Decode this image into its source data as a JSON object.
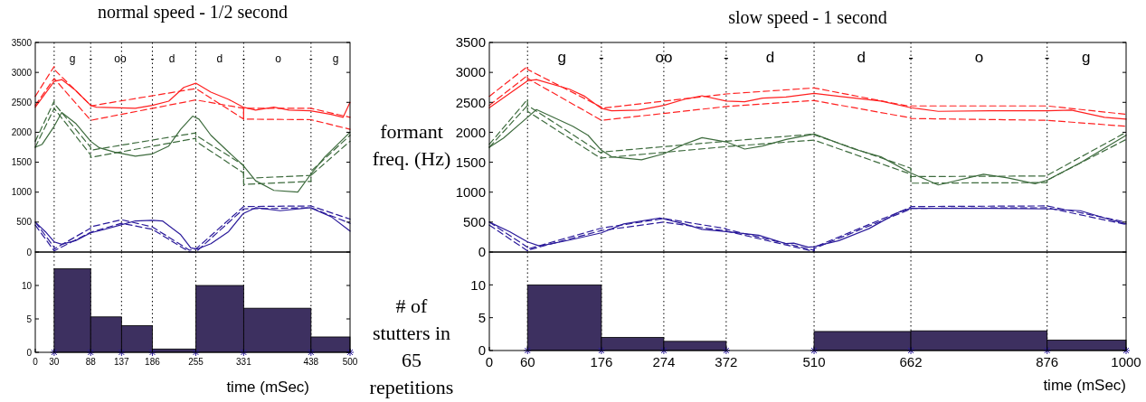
{
  "chart_data": [
    {
      "type": "line",
      "title": "normal speed - 1/2 second",
      "xlim": [
        0,
        500
      ],
      "ylim": [
        0,
        3500
      ],
      "yticks": [
        0,
        500,
        1000,
        1500,
        2000,
        2500,
        3000,
        3500
      ],
      "tick_labels": "y",
      "ref_lines": [
        {
          "axis": "x",
          "value": 30,
          "line_style": "dotted"
        },
        {
          "axis": "x",
          "value": 88,
          "line_style": "dotted"
        },
        {
          "axis": "x",
          "value": 137,
          "line_style": "dotted"
        },
        {
          "axis": "x",
          "value": 186,
          "line_style": "dotted"
        },
        {
          "axis": "x",
          "value": 255,
          "line_style": "dotted"
        },
        {
          "axis": "x",
          "value": 331,
          "line_style": "dotted"
        },
        {
          "axis": "x",
          "value": 438,
          "line_style": "dotted"
        }
      ],
      "annotations": [
        "g",
        "-",
        "oo",
        "-",
        "d",
        "d",
        "-",
        "o",
        "-",
        "g"
      ],
      "series": [
        {
          "color": "#ff2020",
          "line_style": "solid",
          "x": [
            0,
            30,
            42,
            64,
            88,
            97,
            159,
            186,
            212,
            236,
            255,
            279,
            307,
            330,
            350,
            379,
            403,
            437,
            470,
            489,
            500
          ],
          "values": [
            2420,
            2850,
            2880,
            2700,
            2450,
            2420,
            2400,
            2450,
            2520,
            2750,
            2820,
            2670,
            2550,
            2420,
            2370,
            2420,
            2370,
            2360,
            2300,
            2250,
            2500
          ]
        },
        {
          "color": "#ff2020",
          "line_style": "dashed",
          "x": [
            0,
            30,
            30,
            88,
            88,
            255,
            255,
            331,
            331,
            438,
            438,
            500
          ],
          "values": [
            2600,
            3100,
            3050,
            2450,
            2440,
            2730,
            2730,
            2220,
            2400,
            2400,
            2400,
            2250
          ]
        },
        {
          "color": "#ff2020",
          "line_style": "dashed",
          "x": [
            0,
            30,
            30,
            88,
            88,
            255,
            255,
            331,
            331,
            438,
            438,
            500
          ],
          "values": [
            2450,
            2900,
            2900,
            2200,
            2200,
            2540,
            2540,
            2400,
            2220,
            2210,
            2210,
            2050
          ]
        },
        {
          "color": "#3d6b3d",
          "line_style": "solid",
          "x": [
            0,
            11,
            30,
            42,
            64,
            88,
            102,
            126,
            159,
            186,
            212,
            231,
            250,
            260,
            279,
            307,
            330,
            350,
            379,
            417,
            437,
            460,
            500
          ],
          "values": [
            1750,
            1800,
            2100,
            2330,
            2150,
            1850,
            1740,
            1670,
            1600,
            1640,
            1770,
            2050,
            2270,
            2220,
            1950,
            1670,
            1450,
            1190,
            1030,
            1000,
            1290,
            1590,
            2000
          ]
        },
        {
          "color": "#3d6b3d",
          "line_style": "dashed",
          "x": [
            0,
            30,
            30,
            88,
            88,
            255,
            255,
            331,
            331,
            438,
            438,
            500
          ],
          "values": [
            1850,
            2520,
            2480,
            1750,
            1700,
            1990,
            1950,
            1450,
            1230,
            1280,
            1350,
            1950
          ]
        },
        {
          "color": "#3d6b3d",
          "line_style": "dashed",
          "x": [
            0,
            30,
            30,
            88,
            88,
            255,
            255,
            331,
            331,
            438,
            438,
            500
          ],
          "values": [
            1750,
            2400,
            2400,
            1620,
            1580,
            1900,
            1850,
            1320,
            1130,
            1180,
            1280,
            1850
          ]
        },
        {
          "color": "#2a1a9a",
          "line_style": "solid",
          "x": [
            0,
            16,
            30,
            42,
            64,
            88,
            107,
            135,
            159,
            186,
            202,
            231,
            247,
            257,
            279,
            307,
            330,
            350,
            389,
            437,
            470,
            500
          ],
          "values": [
            500,
            340,
            170,
            130,
            190,
            320,
            370,
            450,
            520,
            530,
            520,
            290,
            70,
            50,
            140,
            340,
            640,
            740,
            690,
            740,
            590,
            350
          ]
        },
        {
          "color": "#2a1a9a",
          "line_style": "dashed",
          "x": [
            0,
            30,
            30,
            88,
            88,
            137,
            186,
            245,
            255,
            331,
            331,
            438,
            438,
            500
          ],
          "values": [
            500,
            80,
            50,
            400,
            420,
            540,
            420,
            30,
            50,
            760,
            760,
            770,
            770,
            550
          ]
        },
        {
          "color": "#2a1a9a",
          "line_style": "dashed",
          "x": [
            0,
            30,
            30,
            88,
            88,
            137,
            186,
            245,
            255,
            331,
            331,
            438,
            438,
            500
          ],
          "values": [
            450,
            20,
            20,
            330,
            330,
            480,
            380,
            0,
            0,
            720,
            720,
            740,
            740,
            480
          ]
        }
      ]
    },
    {
      "type": "histogram",
      "xlabel": "time (mSec)",
      "color": "#3d3060",
      "xlim": [
        0,
        500
      ],
      "xticks": [
        0,
        30,
        88,
        137,
        186,
        255,
        331,
        438,
        500
      ],
      "ylim": [
        0,
        15
      ],
      "yticks": [
        0,
        5,
        10
      ],
      "ref_lines": [
        {
          "axis": "x",
          "value": 30,
          "line_style": "dotted"
        },
        {
          "axis": "x",
          "value": 88,
          "line_style": "dotted"
        },
        {
          "axis": "x",
          "value": 137,
          "line_style": "dotted"
        },
        {
          "axis": "x",
          "value": 186,
          "line_style": "dotted"
        },
        {
          "axis": "x",
          "value": 255,
          "line_style": "dotted"
        },
        {
          "axis": "x",
          "value": 331,
          "line_style": "dotted"
        },
        {
          "axis": "x",
          "value": 438,
          "line_style": "dotted"
        }
      ],
      "bins": [
        30,
        88,
        137,
        186,
        255,
        331,
        438,
        500
      ],
      "values": [
        12.5,
        5.3,
        4.0,
        0.5,
        10,
        6.6,
        2.3
      ]
    },
    {
      "type": "line",
      "title": "slow speed - 1 second",
      "ylabel": "formant freq. (Hz)",
      "xlim": [
        0,
        1000
      ],
      "ylim": [
        0,
        3500
      ],
      "yticks": [
        0,
        500,
        1000,
        1500,
        2000,
        2500,
        3000,
        3500
      ],
      "tick_labels": "y",
      "ref_lines": [
        {
          "axis": "x",
          "value": 60,
          "line_style": "dotted"
        },
        {
          "axis": "x",
          "value": 176,
          "line_style": "dotted"
        },
        {
          "axis": "x",
          "value": 274,
          "line_style": "dotted"
        },
        {
          "axis": "x",
          "value": 372,
          "line_style": "dotted"
        },
        {
          "axis": "x",
          "value": 510,
          "line_style": "dotted"
        },
        {
          "axis": "x",
          "value": 662,
          "line_style": "dotted"
        },
        {
          "axis": "x",
          "value": 876,
          "line_style": "dotted"
        }
      ],
      "annotations": [
        "g",
        "-",
        "oo",
        "-",
        "d",
        "d",
        "-",
        "o",
        "-",
        "g"
      ],
      "series": [
        {
          "color": "#ff2020",
          "line_style": "solid",
          "x": [
            0,
            60,
            74,
            126,
            150,
            176,
            192,
            235,
            274,
            306,
            334,
            372,
            401,
            429,
            466,
            510,
            549,
            615,
            662,
            705,
            786,
            876,
            914,
            966,
            1000
          ],
          "values": [
            2410,
            2860,
            2880,
            2720,
            2600,
            2400,
            2360,
            2370,
            2450,
            2550,
            2610,
            2520,
            2510,
            2570,
            2590,
            2650,
            2600,
            2520,
            2410,
            2350,
            2360,
            2360,
            2370,
            2250,
            2220
          ]
        },
        {
          "color": "#ff2020",
          "line_style": "dashed",
          "x": [
            0,
            60,
            60,
            176,
            176,
            372,
            510,
            510,
            662,
            662,
            876,
            876,
            1000
          ],
          "values": [
            2600,
            3100,
            3050,
            2420,
            2400,
            2640,
            2740,
            2740,
            2430,
            2440,
            2440,
            2440,
            2300
          ]
        },
        {
          "color": "#ff2020",
          "line_style": "dashed",
          "x": [
            0,
            60,
            60,
            176,
            176,
            372,
            510,
            510,
            662,
            662,
            876,
            876,
            1000
          ],
          "values": [
            2450,
            2950,
            2900,
            2200,
            2200,
            2430,
            2530,
            2530,
            2240,
            2230,
            2200,
            2200,
            2100
          ]
        },
        {
          "color": "#3d6b3d",
          "line_style": "solid",
          "x": [
            0,
            22,
            60,
            74,
            131,
            155,
            176,
            192,
            239,
            274,
            306,
            334,
            372,
            401,
            429,
            466,
            510,
            573,
            615,
            662,
            705,
            776,
            814,
            857,
            876,
            928,
            1000
          ],
          "values": [
            1750,
            1900,
            2250,
            2380,
            2100,
            1950,
            1700,
            1590,
            1540,
            1640,
            1800,
            1910,
            1840,
            1720,
            1770,
            1880,
            1970,
            1720,
            1590,
            1320,
            1120,
            1300,
            1240,
            1140,
            1200,
            1490,
            1950
          ]
        },
        {
          "color": "#3d6b3d",
          "line_style": "dashed",
          "x": [
            0,
            60,
            60,
            176,
            176,
            372,
            510,
            510,
            662,
            662,
            876,
            876,
            1000
          ],
          "values": [
            1800,
            2550,
            2450,
            1650,
            1670,
            1850,
            1970,
            1960,
            1400,
            1260,
            1270,
            1280,
            2000
          ]
        },
        {
          "color": "#3d6b3d",
          "line_style": "dashed",
          "x": [
            0,
            60,
            60,
            176,
            176,
            372,
            510,
            510,
            662,
            662,
            876,
            876,
            1000
          ],
          "values": [
            1750,
            2450,
            2350,
            1560,
            1570,
            1760,
            1870,
            1870,
            1300,
            1150,
            1160,
            1200,
            1880
          ]
        },
        {
          "color": "#2a1a9a",
          "line_style": "solid",
          "x": [
            0,
            32,
            60,
            79,
            126,
            176,
            211,
            268,
            306,
            334,
            372,
            423,
            466,
            478,
            501,
            510,
            549,
            596,
            644,
            662,
            786,
            876,
            928,
            966,
            1000
          ],
          "values": [
            500,
            340,
            170,
            100,
            200,
            320,
            470,
            570,
            470,
            380,
            340,
            280,
            140,
            150,
            80,
            90,
            190,
            390,
            670,
            730,
            730,
            720,
            690,
            570,
            470
          ]
        },
        {
          "color": "#2a1a9a",
          "line_style": "dashed",
          "x": [
            0,
            60,
            60,
            176,
            176,
            274,
            372,
            372,
            510,
            510,
            662,
            662,
            876,
            876,
            1000
          ],
          "values": [
            500,
            80,
            50,
            400,
            400,
            560,
            390,
            380,
            30,
            80,
            750,
            760,
            770,
            770,
            500
          ]
        },
        {
          "color": "#2a1a9a",
          "line_style": "dashed",
          "x": [
            0,
            60,
            60,
            176,
            176,
            274,
            372,
            372,
            510,
            510,
            662,
            662,
            876,
            876,
            1000
          ],
          "values": [
            450,
            20,
            30,
            360,
            360,
            500,
            350,
            350,
            10,
            60,
            720,
            730,
            740,
            740,
            460
          ]
        }
      ]
    },
    {
      "type": "histogram",
      "ylabel": "# of stutters in 65 repetitions",
      "xlabel": "time (mSec)",
      "color": "#3d3060",
      "xlim": [
        0,
        1000
      ],
      "xticks": [
        0,
        60,
        176,
        274,
        372,
        510,
        662,
        876,
        1000
      ],
      "ylim": [
        0,
        15
      ],
      "yticks": [
        0,
        5,
        10
      ],
      "ref_lines": [
        {
          "axis": "x",
          "value": 60,
          "line_style": "dotted"
        },
        {
          "axis": "x",
          "value": 176,
          "line_style": "dotted"
        },
        {
          "axis": "x",
          "value": 274,
          "line_style": "dotted"
        },
        {
          "axis": "x",
          "value": 372,
          "line_style": "dotted"
        },
        {
          "axis": "x",
          "value": 510,
          "line_style": "dotted"
        },
        {
          "axis": "x",
          "value": 662,
          "line_style": "dotted"
        },
        {
          "axis": "x",
          "value": 876,
          "line_style": "dotted"
        }
      ],
      "bins": [
        60,
        176,
        274,
        372,
        510,
        662,
        876,
        1000
      ],
      "values": [
        10,
        2,
        1.4,
        0,
        2.9,
        3,
        1.6
      ]
    }
  ]
}
